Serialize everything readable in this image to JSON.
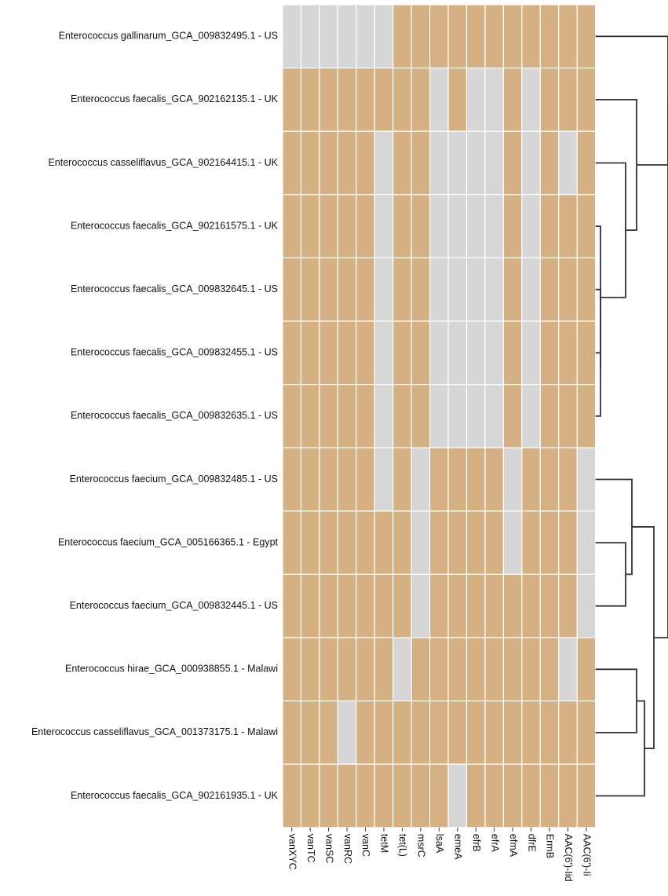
{
  "chart_data": {
    "type": "heatmap",
    "title": "",
    "xlabel": "",
    "ylabel": "",
    "rows": [
      "Enterococcus gallinarum_GCA_009832495.1 - US",
      "Enterococcus faecalis_GCA_902162135.1  - UK",
      "Enterococcus casseliflavus_GCA_902164415.1 - UK",
      "Enterococcus faecalis_GCA_902161575.1 - UK",
      "Enterococcus faecalis_GCA_009832645.1 - US",
      "Enterococcus faecalis_GCA_009832455.1 - US",
      "Enterococcus faecalis_GCA_009832635.1 - US",
      "Enterococcus faecium_GCA_009832485.1 - US",
      "Enterococcus faecium_GCA_005166365.1 - Egypt",
      "Enterococcus faecium_GCA_009832445.1 - US",
      "Enterococcus hirae_GCA_000938855.1 - Malawi",
      "Enterococcus casseliflavus_GCA_001373175.1 - Malawi",
      "Enterococcus faecalis_GCA_902161935.1  - UK"
    ],
    "columns": [
      "vanXYC",
      "vanTC",
      "vanSC",
      "vanRC",
      "vanC",
      "tetM",
      "tet(L)",
      "msrC",
      "lsaA",
      "emeA",
      "efrB",
      "efrA",
      "efmA",
      "dfrE",
      "ErmB",
      "AAC(6')-Iid",
      "AAC(6')-Ii"
    ],
    "values": [
      [
        0,
        0,
        0,
        0,
        0,
        0,
        1,
        1,
        1,
        1,
        1,
        1,
        1,
        1,
        1,
        1,
        1
      ],
      [
        1,
        1,
        1,
        1,
        1,
        1,
        1,
        1,
        0,
        1,
        0,
        0,
        1,
        0,
        1,
        1,
        1
      ],
      [
        1,
        1,
        1,
        1,
        1,
        0,
        1,
        1,
        0,
        0,
        0,
        0,
        1,
        0,
        1,
        0,
        1
      ],
      [
        1,
        1,
        1,
        1,
        1,
        0,
        1,
        1,
        0,
        0,
        0,
        0,
        1,
        0,
        1,
        1,
        1
      ],
      [
        1,
        1,
        1,
        1,
        1,
        0,
        1,
        1,
        0,
        0,
        0,
        0,
        1,
        0,
        1,
        1,
        1
      ],
      [
        1,
        1,
        1,
        1,
        1,
        0,
        1,
        1,
        0,
        0,
        0,
        0,
        1,
        0,
        1,
        1,
        1
      ],
      [
        1,
        1,
        1,
        1,
        1,
        0,
        1,
        1,
        0,
        0,
        0,
        0,
        1,
        0,
        1,
        1,
        1
      ],
      [
        1,
        1,
        1,
        1,
        1,
        0,
        1,
        0,
        1,
        1,
        1,
        1,
        0,
        1,
        1,
        1,
        0
      ],
      [
        1,
        1,
        1,
        1,
        1,
        1,
        1,
        0,
        1,
        1,
        1,
        1,
        0,
        1,
        1,
        1,
        0
      ],
      [
        1,
        1,
        1,
        1,
        1,
        1,
        1,
        0,
        1,
        1,
        1,
        1,
        1,
        1,
        1,
        1,
        0
      ],
      [
        1,
        1,
        1,
        1,
        1,
        1,
        0,
        1,
        1,
        1,
        1,
        1,
        1,
        1,
        1,
        0,
        1
      ],
      [
        1,
        1,
        1,
        0,
        1,
        1,
        1,
        1,
        1,
        1,
        1,
        1,
        1,
        1,
        1,
        1,
        1
      ],
      [
        1,
        1,
        1,
        1,
        1,
        1,
        1,
        1,
        1,
        0,
        1,
        1,
        1,
        1,
        1,
        1,
        1
      ]
    ],
    "value_meaning": {
      "1": "present",
      "0": "absent"
    },
    "colors": {
      "present": "#d4b083",
      "absent": "#d6d6d6",
      "grid": "#ffffff",
      "dendrogram": "#333333"
    },
    "legend": "none",
    "dendrogram": "right"
  }
}
